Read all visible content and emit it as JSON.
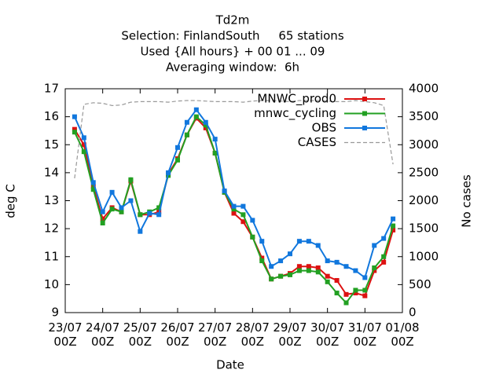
{
  "chart_data": {
    "type": "line",
    "title": "Td2m",
    "subtitle_lines": [
      "Selection: FinlandSouth     65 stations",
      "Used {All hours} + 00 01 ... 09",
      "Averaging window:  6h"
    ],
    "xlabel": "Date",
    "ylabel": "deg C",
    "y2label": "No cases",
    "x": [
      "23/07 06Z",
      "23/07 12Z",
      "23/07 18Z",
      "24/07 00Z",
      "24/07 06Z",
      "24/07 12Z",
      "24/07 18Z",
      "25/07 00Z",
      "25/07 06Z",
      "25/07 12Z",
      "25/07 18Z",
      "26/07 00Z",
      "26/07 06Z",
      "26/07 12Z",
      "26/07 18Z",
      "27/07 00Z",
      "27/07 06Z",
      "27/07 12Z",
      "27/07 18Z",
      "28/07 00Z",
      "28/07 06Z",
      "28/07 12Z",
      "28/07 18Z",
      "29/07 00Z",
      "29/07 06Z",
      "29/07 12Z",
      "29/07 18Z",
      "30/07 00Z",
      "30/07 06Z",
      "30/07 12Z",
      "30/07 18Z",
      "31/07 00Z",
      "31/07 06Z",
      "31/07 12Z",
      "31/07 18Z"
    ],
    "xticks": [
      "23/07 00Z",
      "24/07 00Z",
      "25/07 00Z",
      "26/07 00Z",
      "27/07 00Z",
      "28/07 00Z",
      "29/07 00Z",
      "30/07 00Z",
      "31/07 00Z",
      "01/08 00Z"
    ],
    "ylim": [
      9,
      17
    ],
    "yticks": [
      9,
      10,
      11,
      12,
      13,
      14,
      15,
      16,
      17
    ],
    "y2lim": [
      0,
      4000
    ],
    "y2ticks": [
      0,
      500,
      1000,
      1500,
      2000,
      2500,
      3000,
      3500,
      4000
    ],
    "legend": "upper right",
    "series": [
      {
        "name": "MNWC_prod0",
        "color": "#dd1111",
        "marker": true,
        "values": [
          15.55,
          15.0,
          13.5,
          12.35,
          12.75,
          12.6,
          13.7,
          12.5,
          12.5,
          12.6,
          13.95,
          14.5,
          15.35,
          15.95,
          15.6,
          14.7,
          13.3,
          12.55,
          12.25,
          11.7,
          10.95,
          10.2,
          10.3,
          10.4,
          10.65,
          10.65,
          10.6,
          10.3,
          10.15,
          9.65,
          9.7,
          9.6,
          10.5,
          10.8,
          11.95
        ]
      },
      {
        "name": "mnwc_cycling",
        "color": "#22a022",
        "marker": true,
        "values": [
          15.45,
          14.75,
          13.4,
          12.2,
          12.7,
          12.6,
          13.75,
          12.5,
          12.6,
          12.75,
          13.9,
          14.45,
          15.35,
          16.0,
          15.7,
          14.7,
          13.3,
          12.7,
          12.5,
          11.7,
          10.85,
          10.2,
          10.3,
          10.35,
          10.5,
          10.5,
          10.45,
          10.1,
          9.7,
          9.35,
          9.8,
          9.8,
          10.6,
          11.0,
          12.1
        ]
      },
      {
        "name": "OBS",
        "color": "#1177dd",
        "marker": true,
        "values": [
          16.0,
          15.25,
          13.65,
          12.6,
          13.3,
          12.75,
          13.0,
          11.9,
          12.55,
          12.5,
          14.0,
          14.9,
          15.8,
          16.25,
          15.8,
          15.2,
          13.35,
          12.8,
          12.8,
          12.3,
          11.55,
          10.65,
          10.85,
          11.1,
          11.55,
          11.55,
          11.4,
          10.85,
          10.8,
          10.65,
          10.5,
          10.25,
          11.4,
          11.65,
          12.35
        ]
      },
      {
        "name": "CASES",
        "color": "#999999",
        "marker": false,
        "dashed": true,
        "axis": "y2",
        "values": [
          2400,
          3720,
          3750,
          3740,
          3700,
          3710,
          3760,
          3770,
          3770,
          3770,
          3760,
          3780,
          3790,
          3790,
          3780,
          3770,
          3770,
          3770,
          3760,
          3780,
          3790,
          3790,
          3780,
          3770,
          3790,
          3790,
          3790,
          3780,
          3770,
          3770,
          3790,
          3770,
          3750,
          3700,
          2650
        ]
      }
    ]
  }
}
